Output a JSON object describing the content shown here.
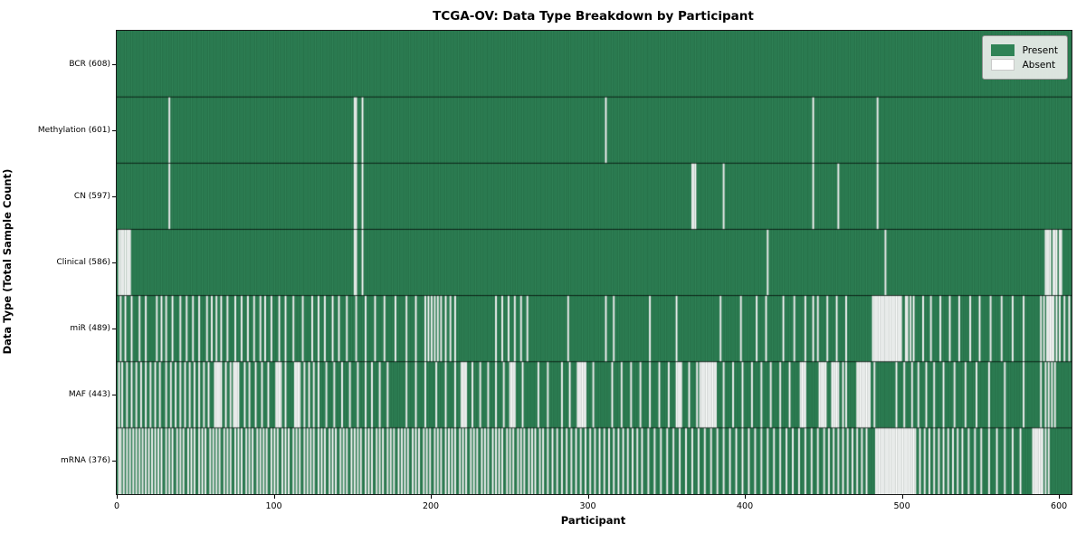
{
  "figure": {
    "title": "TCGA-OV: Data Type Breakdown by Participant",
    "xlabel": "Participant",
    "ylabel": "Data Type (Total Sample Count)"
  },
  "legend": {
    "items": [
      {
        "label": "Present",
        "color": "#2f8356"
      },
      {
        "label": "Absent",
        "color": "#ffffff"
      }
    ]
  },
  "chart_data": {
    "type": "heatmap",
    "title": "TCGA-OV: Data Type Breakdown by Participant",
    "xlabel": "Participant",
    "ylabel": "Data Type (Total Sample Count)",
    "legend_entries": [
      "Present",
      "Absent"
    ],
    "legend_position": "upper right",
    "grid": false,
    "x_ticks": [
      0,
      100,
      200,
      300,
      400,
      500,
      600
    ],
    "xlim": [
      0,
      608
    ],
    "n_participants": 608,
    "present_color": "#2f8356",
    "absent_color": "#ffffff",
    "rows": [
      {
        "label": "BCR (608)",
        "name": "BCR",
        "total": 608,
        "absent": []
      },
      {
        "label": "Methylation (601)",
        "name": "Methylation",
        "total": 601,
        "absent": [
          33,
          151,
          152,
          156,
          311,
          443,
          484
        ]
      },
      {
        "label": "CN (597)",
        "name": "CN",
        "total": 597,
        "absent": [
          33,
          151,
          152,
          156,
          366,
          367,
          368,
          386,
          443,
          459,
          484
        ]
      },
      {
        "label": "Clinical (586)",
        "name": "Clinical",
        "total": 586,
        "absent": [
          1,
          2,
          3,
          4,
          5,
          6,
          7,
          8,
          151,
          152,
          156,
          414,
          489,
          591,
          592,
          593,
          594,
          596,
          597,
          598,
          600,
          601
        ]
      },
      {
        "label": "miR (489)",
        "name": "miR",
        "total": 489,
        "absent": [
          2,
          5,
          9,
          14,
          18,
          25,
          28,
          31,
          35,
          40,
          44,
          48,
          52,
          57,
          60,
          63,
          66,
          70,
          75,
          79,
          83,
          87,
          91,
          94,
          98,
          103,
          107,
          112,
          118,
          124,
          128,
          132,
          137,
          141,
          146,
          152,
          158,
          164,
          170,
          177,
          184,
          190,
          196,
          198,
          200,
          202,
          204,
          206,
          209,
          212,
          215,
          241,
          245,
          249,
          253,
          257,
          261,
          287,
          311,
          316,
          339,
          356,
          384,
          397,
          407,
          413,
          424,
          431,
          438,
          443,
          446,
          452,
          458,
          464,
          [
            481,
            499
          ],
          502,
          503,
          505,
          507,
          513,
          518,
          524,
          530,
          536,
          543,
          549,
          556,
          563,
          570,
          577,
          588,
          590,
          [
            592,
            596
          ],
          598,
          600,
          603,
          606
        ]
      },
      {
        "label": "MAF (443)",
        "name": "MAF",
        "total": 443,
        "absent": [
          1,
          3,
          6,
          9,
          12,
          15,
          18,
          21,
          24,
          27,
          31,
          34,
          37,
          40,
          43,
          46,
          49,
          52,
          55,
          58,
          [
            62,
            66
          ],
          69,
          72,
          [
            74,
            77
          ],
          81,
          84,
          88,
          92,
          96,
          [
            101,
            104
          ],
          107,
          [
            113,
            116
          ],
          119,
          122,
          125,
          128,
          133,
          138,
          143,
          148,
          153,
          158,
          162,
          167,
          172,
          184,
          190,
          196,
          203,
          209,
          215,
          [
            219,
            222
          ],
          226,
          231,
          236,
          241,
          246,
          [
            250,
            253
          ],
          258,
          268,
          274,
          283,
          288,
          [
            293,
            298
          ],
          303,
          315,
          321,
          327,
          333,
          339,
          345,
          351,
          [
            356,
            359
          ],
          364,
          369,
          [
            371,
            381
          ],
          386,
          392,
          398,
          404,
          410,
          416,
          422,
          428,
          [
            435,
            438
          ],
          [
            447,
            451
          ],
          [
            455,
            459
          ],
          462,
          464,
          [
            471,
            479
          ],
          482,
          496,
          501,
          506,
          510,
          515,
          520,
          526,
          533,
          540,
          547,
          555,
          565,
          577,
          588,
          591,
          593,
          595,
          597
        ]
      },
      {
        "label": "mRNA (376)",
        "name": "mRNA",
        "total": 376,
        "absent": [
          1,
          2,
          4,
          6,
          8,
          10,
          12,
          14,
          16,
          18,
          20,
          22,
          24,
          26,
          28,
          31,
          33,
          35,
          38,
          40,
          42,
          45,
          47,
          49,
          52,
          54,
          56,
          59,
          61,
          63,
          65,
          68,
          70,
          72,
          75,
          77,
          79,
          82,
          84,
          86,
          89,
          91,
          93,
          95,
          98,
          100,
          102,
          105,
          107,
          109,
          112,
          114,
          116,
          119,
          121,
          123,
          125,
          128,
          130,
          132,
          135,
          137,
          139,
          142,
          144,
          146,
          149,
          151,
          153,
          155,
          158,
          160,
          162,
          165,
          167,
          169,
          172,
          174,
          176,
          179,
          181,
          183,
          185,
          188,
          190,
          192,
          195,
          197,
          199,
          202,
          204,
          206,
          209,
          211,
          213,
          215,
          218,
          220,
          222,
          225,
          227,
          229,
          232,
          234,
          236,
          239,
          241,
          243,
          245,
          248,
          250,
          252,
          255,
          257,
          259,
          262,
          264,
          266,
          269,
          271,
          274,
          277,
          280,
          283,
          286,
          289,
          292,
          295,
          298,
          301,
          304,
          307,
          310,
          313,
          316,
          319,
          322,
          325,
          328,
          331,
          334,
          338,
          342,
          346,
          350,
          354,
          358,
          362,
          366,
          370,
          374,
          378,
          382,
          386,
          390,
          394,
          398,
          402,
          406,
          410,
          414,
          418,
          422,
          426,
          430,
          434,
          438,
          442,
          446,
          450,
          453,
          456,
          459,
          462,
          465,
          468,
          471,
          474,
          477,
          [
            483,
            508
          ],
          511,
          514,
          517,
          520,
          523,
          526,
          529,
          532,
          535,
          538,
          542,
          546,
          550,
          555,
          560,
          565,
          570,
          575,
          [
            583,
            589
          ],
          591,
          593
        ]
      }
    ]
  }
}
